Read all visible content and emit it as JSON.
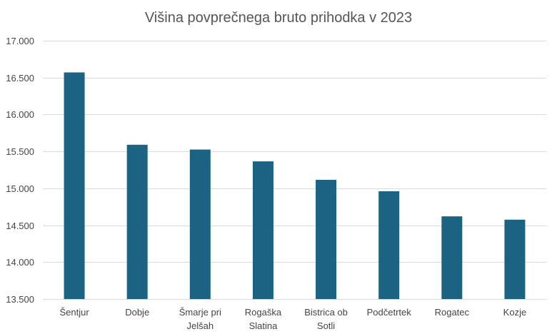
{
  "chart_data": {
    "type": "bar",
    "title": "Višina povprečnega bruto prihodka v 2023",
    "xlabel": "",
    "ylabel": "",
    "categories": [
      [
        "Šentjur"
      ],
      [
        "Dobje"
      ],
      [
        "Šmarje pri",
        "Jelšah"
      ],
      [
        "Rogaška",
        "Slatina"
      ],
      [
        "Bistrica ob",
        "Sotli"
      ],
      [
        "Podčetrtek"
      ],
      [
        "Rogatec"
      ],
      [
        "Kozje"
      ]
    ],
    "values": [
      16570,
      15590,
      15525,
      15365,
      15115,
      14960,
      14620,
      14575
    ],
    "ylim": [
      13500,
      17000
    ],
    "yticks": [
      13500,
      14000,
      14500,
      15000,
      15500,
      16000,
      16500,
      17000
    ],
    "ytick_labels": [
      "13.500",
      "14.000",
      "14.500",
      "15.000",
      "15.500",
      "16.000",
      "16.500",
      "17.000"
    ],
    "grid": true,
    "legend": "none",
    "bar_color": "#1b6283"
  }
}
